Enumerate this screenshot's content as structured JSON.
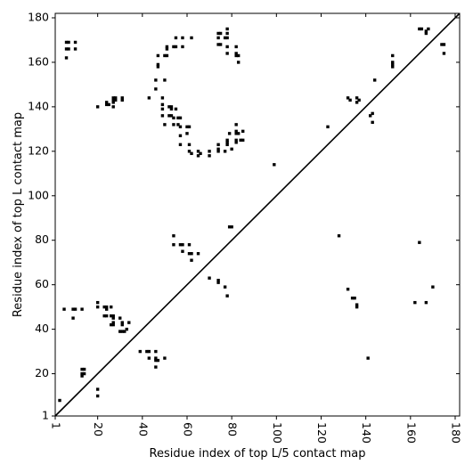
{
  "chart_data": {
    "type": "scatter",
    "title": "",
    "xlabel": "Residue index of top L/5 contact map",
    "ylabel": "Residue index of top L contact map",
    "xlim": [
      1,
      182
    ],
    "ylim": [
      1,
      182
    ],
    "x_ticks": [
      1,
      20,
      40,
      60,
      80,
      100,
      120,
      140,
      160,
      180
    ],
    "y_ticks": [
      1,
      20,
      40,
      60,
      80,
      100,
      120,
      140,
      160,
      180
    ],
    "x_tick_rotation": 90,
    "grid": false,
    "marker": "square",
    "diagonal_line": true,
    "colors": {
      "points": "#000000",
      "diagonal": "#000000",
      "frame": "#000000",
      "background": "#ffffff"
    },
    "series": [
      {
        "points_upper": [
          [
            6,
            169
          ],
          [
            7,
            169
          ],
          [
            10,
            169
          ],
          [
            6,
            166
          ],
          [
            7,
            166
          ],
          [
            10,
            166
          ],
          [
            6,
            162
          ],
          [
            20,
            140
          ],
          [
            24,
            141
          ],
          [
            24,
            142
          ],
          [
            25,
            141
          ],
          [
            27,
            142
          ],
          [
            27,
            143
          ],
          [
            28,
            143
          ],
          [
            28,
            144
          ],
          [
            27,
            144
          ],
          [
            31,
            143
          ],
          [
            31,
            144
          ],
          [
            27,
            140
          ],
          [
            43,
            144
          ],
          [
            46,
            148
          ],
          [
            46,
            152
          ],
          [
            47,
            158
          ],
          [
            47,
            159
          ],
          [
            47,
            163
          ],
          [
            49,
            144
          ],
          [
            49,
            141
          ],
          [
            49,
            139
          ],
          [
            49,
            136
          ],
          [
            50,
            132
          ],
          [
            50,
            152
          ],
          [
            50,
            163
          ],
          [
            51,
            163
          ],
          [
            51,
            166
          ],
          [
            51,
            167
          ],
          [
            54,
            167
          ],
          [
            55,
            167
          ],
          [
            58,
            167
          ],
          [
            55,
            171
          ],
          [
            58,
            171
          ],
          [
            62,
            171
          ],
          [
            52,
            140
          ],
          [
            53,
            140
          ],
          [
            53,
            139
          ],
          [
            52,
            136
          ],
          [
            53,
            136
          ],
          [
            54,
            132
          ],
          [
            54,
            135
          ],
          [
            55,
            139
          ],
          [
            56,
            135
          ],
          [
            56,
            132
          ],
          [
            57,
            135
          ],
          [
            57,
            131
          ],
          [
            57,
            127
          ],
          [
            57,
            123
          ],
          [
            60,
            131
          ],
          [
            60,
            128
          ],
          [
            61,
            131
          ],
          [
            61,
            123
          ],
          [
            61,
            120
          ],
          [
            62,
            119
          ],
          [
            65,
            120
          ],
          [
            65,
            118
          ],
          [
            66,
            119
          ],
          [
            70,
            118
          ],
          [
            70,
            120
          ],
          [
            74,
            120
          ],
          [
            74,
            121
          ],
          [
            74,
            123
          ],
          [
            77,
            120
          ],
          [
            78,
            123
          ],
          [
            78,
            124
          ],
          [
            78,
            125
          ],
          [
            79,
            128
          ],
          [
            80,
            121
          ],
          [
            82,
            124
          ],
          [
            82,
            125
          ],
          [
            82,
            128
          ],
          [
            82,
            129
          ],
          [
            83,
            128
          ],
          [
            84,
            125
          ],
          [
            85,
            125
          ],
          [
            85,
            129
          ],
          [
            82,
            132
          ],
          [
            74,
            168
          ],
          [
            74,
            171
          ],
          [
            74,
            173
          ],
          [
            75,
            173
          ],
          [
            75,
            168
          ],
          [
            77,
            171
          ],
          [
            78,
            171
          ],
          [
            78,
            173
          ],
          [
            78,
            175
          ],
          [
            78,
            167
          ],
          [
            78,
            164
          ],
          [
            82,
            167
          ],
          [
            82,
            164
          ],
          [
            82,
            163
          ],
          [
            83,
            163
          ],
          [
            83,
            160
          ],
          [
            99,
            114
          ],
          [
            123,
            131
          ],
          [
            132,
            144
          ],
          [
            133,
            143
          ],
          [
            136,
            144
          ],
          [
            136,
            142
          ],
          [
            137,
            143
          ],
          [
            142,
            136
          ],
          [
            143,
            137
          ],
          [
            143,
            133
          ],
          [
            144,
            152
          ],
          [
            152,
            158
          ],
          [
            152,
            159
          ],
          [
            152,
            160
          ],
          [
            152,
            163
          ],
          [
            164,
            175
          ],
          [
            165,
            175
          ],
          [
            167,
            173
          ],
          [
            167,
            174
          ],
          [
            168,
            175
          ],
          [
            174,
            168
          ],
          [
            175,
            168
          ],
          [
            175,
            164
          ]
        ],
        "points_lower": [
          [
            3,
            8
          ],
          [
            13,
            19
          ],
          [
            13,
            20
          ],
          [
            14,
            20
          ],
          [
            13,
            22
          ],
          [
            14,
            22
          ],
          [
            20,
            10
          ],
          [
            20,
            13
          ],
          [
            20,
            50
          ],
          [
            20,
            52
          ],
          [
            5,
            49
          ],
          [
            9,
            49
          ],
          [
            10,
            49
          ],
          [
            13,
            49
          ],
          [
            9,
            45
          ],
          [
            23,
            50
          ],
          [
            24,
            50
          ],
          [
            24,
            49
          ],
          [
            23,
            46
          ],
          [
            24,
            46
          ],
          [
            26,
            46
          ],
          [
            26,
            50
          ],
          [
            27,
            46
          ],
          [
            27,
            45
          ],
          [
            27,
            43
          ],
          [
            26,
            42
          ],
          [
            27,
            42
          ],
          [
            31,
            42
          ],
          [
            31,
            43
          ],
          [
            30,
            39
          ],
          [
            31,
            39
          ],
          [
            32,
            39
          ],
          [
            33,
            40
          ],
          [
            30,
            45
          ],
          [
            34,
            43
          ],
          [
            39,
            30
          ],
          [
            42,
            30
          ],
          [
            43,
            30
          ],
          [
            46,
            30
          ],
          [
            43,
            27
          ],
          [
            46,
            27
          ],
          [
            46,
            26
          ],
          [
            47,
            26
          ],
          [
            46,
            23
          ],
          [
            50,
            27
          ],
          [
            54,
            82
          ],
          [
            54,
            78
          ],
          [
            57,
            78
          ],
          [
            58,
            78
          ],
          [
            58,
            75
          ],
          [
            61,
            74
          ],
          [
            62,
            74
          ],
          [
            61,
            78
          ],
          [
            62,
            71
          ],
          [
            65,
            74
          ],
          [
            70,
            63
          ],
          [
            74,
            62
          ],
          [
            74,
            61
          ],
          [
            77,
            59
          ],
          [
            78,
            55
          ],
          [
            79,
            86
          ],
          [
            80,
            86
          ],
          [
            128,
            82
          ],
          [
            132,
            58
          ],
          [
            134,
            54
          ],
          [
            135,
            54
          ],
          [
            136,
            51
          ],
          [
            136,
            50
          ],
          [
            141,
            27
          ],
          [
            162,
            52
          ],
          [
            164,
            79
          ],
          [
            167,
            52
          ],
          [
            170,
            59
          ]
        ]
      }
    ]
  }
}
